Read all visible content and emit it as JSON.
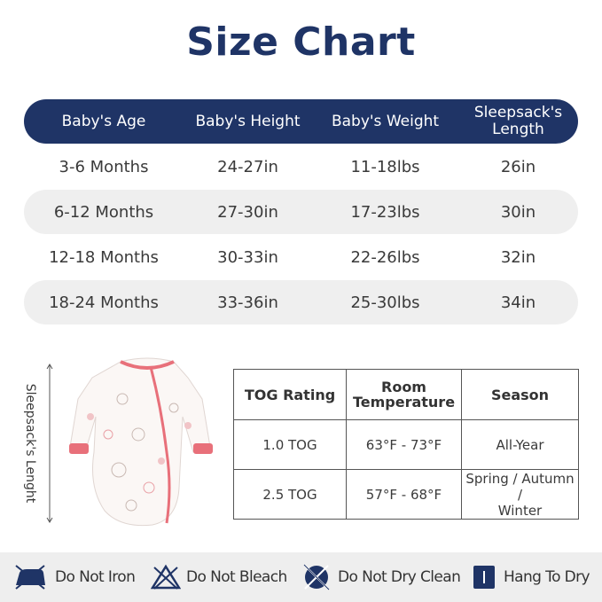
{
  "title": "Size Chart",
  "size_table": {
    "headers": [
      "Baby's Age",
      "Baby's Height",
      "Baby's Weight",
      "Sleepsack's",
      "Length"
    ],
    "rows": [
      [
        "3-6 Months",
        "24-27in",
        "11-18lbs",
        "26in"
      ],
      [
        "6-12 Months",
        "27-30in",
        "17-23lbs",
        "30in"
      ],
      [
        "12-18 Months",
        "30-33in",
        "22-26lbs",
        "32in"
      ],
      [
        "18-24 Months",
        "33-36in",
        "25-30lbs",
        "34in"
      ]
    ]
  },
  "illustration": {
    "length_label": "Sleepsack's Lenght",
    "colors": {
      "body": "#fbf7f5",
      "trim": "#e8707a",
      "print": "#c9b9b3"
    }
  },
  "tog_table": {
    "headers": [
      "TOG Rating",
      "Room",
      "Temperature",
      "Season"
    ],
    "rows": [
      [
        "1.0 TOG",
        "63°F  - 73°F",
        "All-Year",
        ""
      ],
      [
        "2.5 TOG",
        "57°F  - 68°F",
        "Spring / Autumn /",
        "Winter"
      ]
    ]
  },
  "care": [
    {
      "icon": "no-iron-icon",
      "label": "Do Not Iron"
    },
    {
      "icon": "no-bleach-icon",
      "label": "Do Not Bleach"
    },
    {
      "icon": "no-dry-clean-icon",
      "label": "Do Not Dry Clean"
    },
    {
      "icon": "hang-dry-icon",
      "label": "Hang To Dry"
    }
  ],
  "colors": {
    "navy": "#1f3466",
    "row_alt": "#efefef",
    "care_bg": "#eeeeee"
  }
}
